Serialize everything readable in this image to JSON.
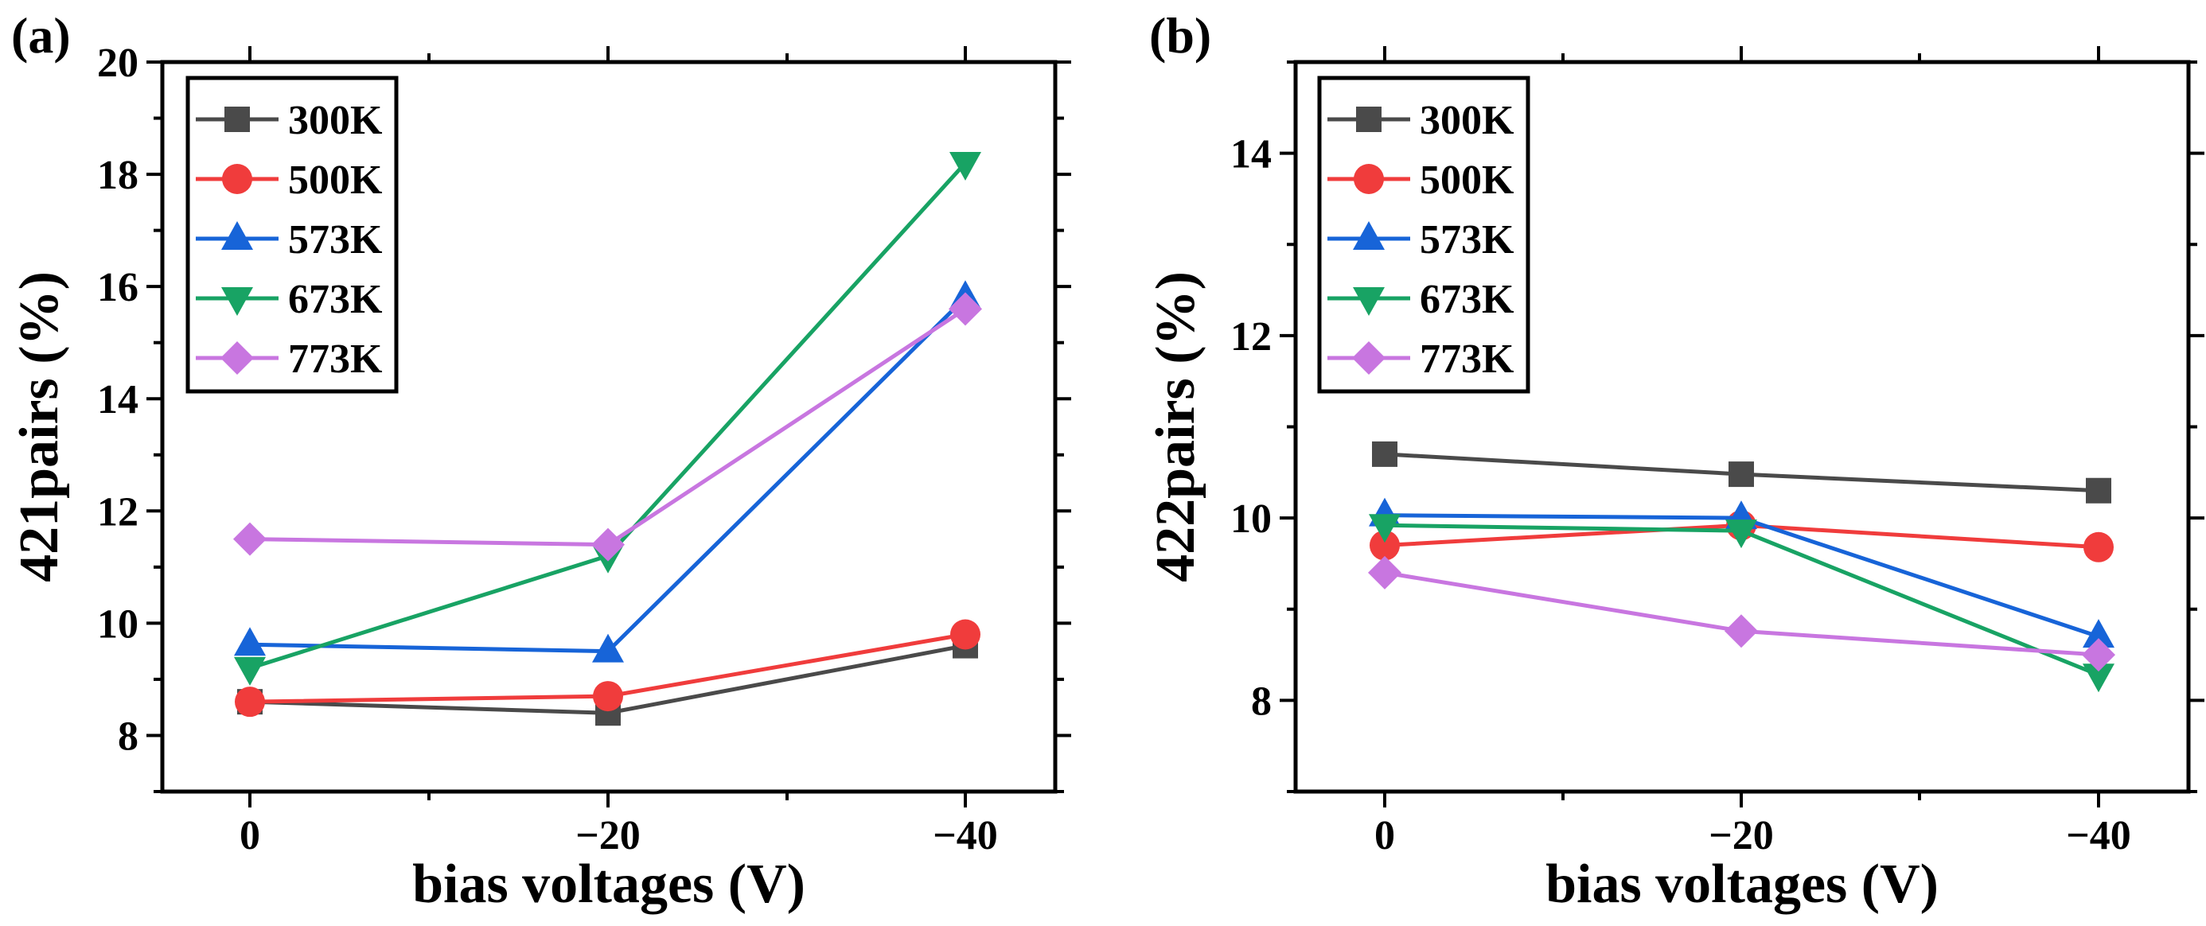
{
  "chart_data": [
    {
      "type": "line",
      "panel_label": "(a)",
      "xlabel": "bias voltages (V)",
      "ylabel": "421pairs (%)",
      "categories": [
        "0",
        "−20",
        "−40"
      ],
      "ylim": [
        7,
        20
      ],
      "yticks": [
        "8",
        "10",
        "12",
        "14",
        "16",
        "18",
        "20"
      ],
      "legend_position": "top-left",
      "series": [
        {
          "name": "300K",
          "color": "#4a4a4a",
          "marker": "square",
          "values": [
            8.6,
            8.4,
            9.6
          ]
        },
        {
          "name": "500K",
          "color": "#f03c3c",
          "marker": "circle",
          "values": [
            8.6,
            8.7,
            9.8
          ]
        },
        {
          "name": "573K",
          "color": "#1764d8",
          "marker": "triangle-up",
          "values": [
            9.62,
            9.5,
            15.8
          ]
        },
        {
          "name": "673K",
          "color": "#18a364",
          "marker": "triangle-down",
          "values": [
            9.2,
            11.2,
            18.2
          ]
        },
        {
          "name": "773K",
          "color": "#c876e0",
          "marker": "diamond",
          "values": [
            11.5,
            11.4,
            15.6
          ]
        }
      ]
    },
    {
      "type": "line",
      "panel_label": "(b)",
      "xlabel": "bias voltages (V)",
      "ylabel": "422pairs (%)",
      "categories": [
        "0",
        "−20",
        "−40"
      ],
      "ylim": [
        7,
        15
      ],
      "yticks": [
        "8",
        "10",
        "12",
        "14"
      ],
      "legend_position": "top-left",
      "series": [
        {
          "name": "300K",
          "color": "#4a4a4a",
          "marker": "square",
          "values": [
            10.7,
            10.48,
            10.3
          ]
        },
        {
          "name": "500K",
          "color": "#f03c3c",
          "marker": "circle",
          "values": [
            9.7,
            9.92,
            9.68
          ]
        },
        {
          "name": "573K",
          "color": "#1764d8",
          "marker": "triangle-up",
          "values": [
            10.03,
            10.0,
            8.7
          ]
        },
        {
          "name": "673K",
          "color": "#18a364",
          "marker": "triangle-down",
          "values": [
            9.92,
            9.86,
            8.28
          ]
        },
        {
          "name": "773K",
          "color": "#c876e0",
          "marker": "diamond",
          "values": [
            9.4,
            8.76,
            8.5
          ]
        }
      ]
    }
  ]
}
